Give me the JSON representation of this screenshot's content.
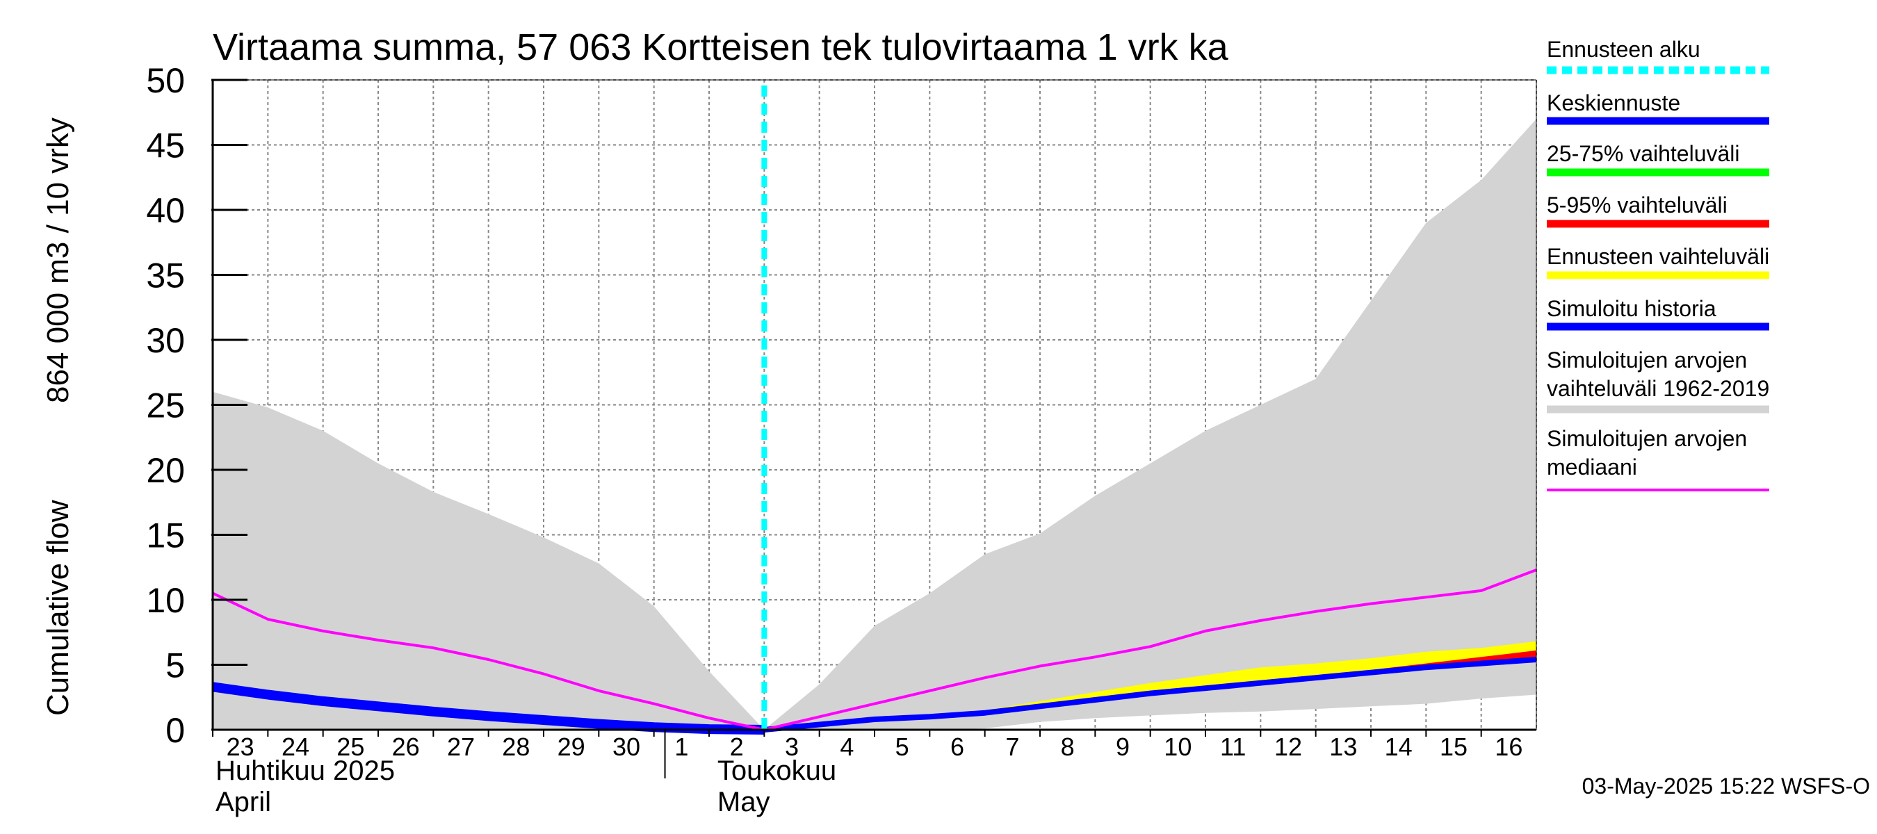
{
  "chart_data": {
    "type": "area",
    "title": "Virtaama summa, 57 063 Kortteisen tek tulovirtaama 1 vrk ka",
    "ylabel_lines": [
      "Cumulative flow",
      "864 000 m3 / 10 vrky"
    ],
    "xlabel": "",
    "ylim": [
      0,
      50
    ],
    "yticks": [
      "0",
      "5",
      "10",
      "15",
      "20",
      "25",
      "30",
      "35",
      "40",
      "45",
      "50"
    ],
    "x_range": [
      0,
      24
    ],
    "x_tick_labels": [
      "23",
      "24",
      "25",
      "26",
      "27",
      "28",
      "29",
      "30",
      "1",
      "2",
      "3",
      "4",
      "5",
      "6",
      "7",
      "8",
      "9",
      "10",
      "11",
      "12",
      "13",
      "14",
      "15",
      "16"
    ],
    "month_labels": [
      {
        "line1": "Huhtikuu  2025",
        "line2": "April",
        "x": 0
      },
      {
        "line1": "Toukokuu",
        "line2": "May",
        "x": 9.1
      }
    ],
    "forecast_start_x": 10.0,
    "series": [
      {
        "name": "Simuloitujen arvojen vaihteluväli 1962-2019 (upper)",
        "role": "hist_upper",
        "x": [
          0,
          1,
          2,
          3,
          4,
          5,
          6,
          7,
          8,
          9,
          10,
          11,
          12,
          13,
          14,
          15,
          16,
          17,
          18,
          19,
          20,
          21,
          22,
          23,
          24
        ],
        "values": [
          26,
          24.8,
          23,
          20.5,
          18.3,
          16.6,
          14.8,
          12.8,
          9.5,
          4.5,
          0,
          3.5,
          8,
          10.5,
          13.5,
          15.1,
          18,
          20.5,
          23,
          25,
          27,
          33,
          39,
          42.3,
          47
        ]
      },
      {
        "name": "Simuloitujen arvojen vaihteluväli 1962-2019 (lower)",
        "role": "hist_lower",
        "x": [
          0,
          1,
          2,
          3,
          4,
          5,
          6,
          7,
          8,
          9,
          10,
          11,
          12,
          13,
          14,
          15,
          16,
          17,
          18,
          19,
          20,
          21,
          22,
          23,
          24
        ],
        "values": [
          0,
          0,
          0,
          0,
          0,
          0,
          0,
          0,
          0,
          0,
          0,
          0,
          0,
          0,
          0.1,
          0.6,
          0.9,
          1.1,
          1.3,
          1.4,
          1.6,
          1.8,
          2.0,
          2.4,
          2.7
        ]
      },
      {
        "name": "Ennusteen vaihteluväli (upper)",
        "role": "ens_upper",
        "x": [
          10,
          11,
          12,
          13,
          14,
          15,
          16,
          17,
          18,
          19,
          20,
          21,
          22,
          23,
          24
        ],
        "values": [
          0,
          0.5,
          0.9,
          1.2,
          1.5,
          2.2,
          2.9,
          3.6,
          4.2,
          4.8,
          5.1,
          5.5,
          6.0,
          6.3,
          6.8
        ]
      },
      {
        "name": "Ennusteen vaihteluväli (lower)",
        "role": "ens_lower",
        "x": [
          10,
          11,
          12,
          13,
          14,
          15,
          16,
          17,
          18,
          19,
          20,
          21,
          22,
          23,
          24
        ],
        "values": [
          0,
          0.4,
          0.8,
          1.0,
          1.3,
          1.8,
          2.3,
          2.8,
          3.2,
          3.6,
          4.0,
          4.4,
          4.8,
          5.0,
          5.2
        ]
      },
      {
        "name": "5-95% vaihteluväli (upper)",
        "role": "p95_upper",
        "x": [
          10,
          11,
          12,
          13,
          14,
          15,
          16,
          17,
          18,
          19,
          20,
          21,
          22,
          23,
          24
        ],
        "values": [
          0,
          0.45,
          0.85,
          1.1,
          1.4,
          1.9,
          2.4,
          2.9,
          3.3,
          3.8,
          4.2,
          4.6,
          5.1,
          5.6,
          6.1
        ]
      },
      {
        "name": "5-95% vaihteluväli (lower)",
        "role": "p95_lower",
        "x": [
          10,
          11,
          12,
          13,
          14,
          15,
          16,
          17,
          18,
          19,
          20,
          21,
          22,
          23,
          24
        ],
        "values": [
          0,
          0.4,
          0.8,
          1.0,
          1.3,
          1.8,
          2.3,
          2.8,
          3.2,
          3.6,
          4.0,
          4.4,
          4.8,
          5.0,
          5.2
        ]
      },
      {
        "name": "Simuloitu historia",
        "role": "hist_sim",
        "x": [
          0,
          1,
          2,
          3,
          4,
          5,
          6,
          7,
          8,
          9,
          10
        ],
        "values": [
          3.3,
          2.7,
          2.2,
          1.8,
          1.4,
          1.05,
          0.75,
          0.45,
          0.2,
          0.05,
          0
        ]
      },
      {
        "name": "Keskiennuste",
        "role": "median_fc",
        "x": [
          10,
          11,
          12,
          13,
          14,
          15,
          16,
          17,
          18,
          19,
          20,
          21,
          22,
          23,
          24
        ],
        "values": [
          0,
          0.4,
          0.8,
          1.0,
          1.3,
          1.8,
          2.3,
          2.8,
          3.2,
          3.6,
          4.0,
          4.4,
          4.8,
          5.1,
          5.4
        ]
      },
      {
        "name": "Simuloitujen arvojen mediaani",
        "role": "hist_median",
        "x": [
          0,
          1,
          2,
          3,
          4,
          5,
          6,
          7,
          8,
          9,
          10,
          11,
          12,
          13,
          14,
          15,
          16,
          17,
          18,
          19,
          20,
          21,
          22,
          23,
          24
        ],
        "values": [
          10.5,
          8.5,
          7.6,
          6.9,
          6.3,
          5.4,
          4.3,
          3.0,
          2.0,
          0.9,
          0,
          1.0,
          2.0,
          3.0,
          4.0,
          4.9,
          5.6,
          6.4,
          7.6,
          8.4,
          9.1,
          9.7,
          10.2,
          10.7,
          12.3
        ]
      }
    ],
    "legend": [
      {
        "label": "Ennusteen alku",
        "color": "#00ffff",
        "style": "dashed"
      },
      {
        "label": "Keskiennuste",
        "color": "#0000ff",
        "style": "solid"
      },
      {
        "label": "25-75% vaihteluväli",
        "color": "#00ff00",
        "style": "solid"
      },
      {
        "label": "5-95% vaihteluväli",
        "color": "#ff0000",
        "style": "solid"
      },
      {
        "label": "Ennusteen vaihteluväli",
        "color": "#ffff00",
        "style": "solid"
      },
      {
        "label": "Simuloitu historia",
        "color": "#0000ff",
        "style": "solid"
      },
      {
        "label": "Simuloitujen arvojen\nvaihteluväli 1962-2019",
        "color": "#d3d3d3",
        "style": "solid"
      },
      {
        "label": "Simuloitujen arvojen\nmediaani",
        "color": "#ff00ff",
        "style": "solid"
      }
    ],
    "legend_placement": "right",
    "grid": true,
    "footer": "03-May-2025 15:22 WSFS-O"
  },
  "colors": {
    "background": "#ffffff",
    "grid": "#888888",
    "hist_range": "#d3d3d3",
    "ensemble": "#ffff00",
    "p95": "#ff0000",
    "simulated": "#0000ff",
    "median_fc": "#0000ff",
    "hist_median": "#ff00ff",
    "forecast_start": "#00ffff"
  }
}
